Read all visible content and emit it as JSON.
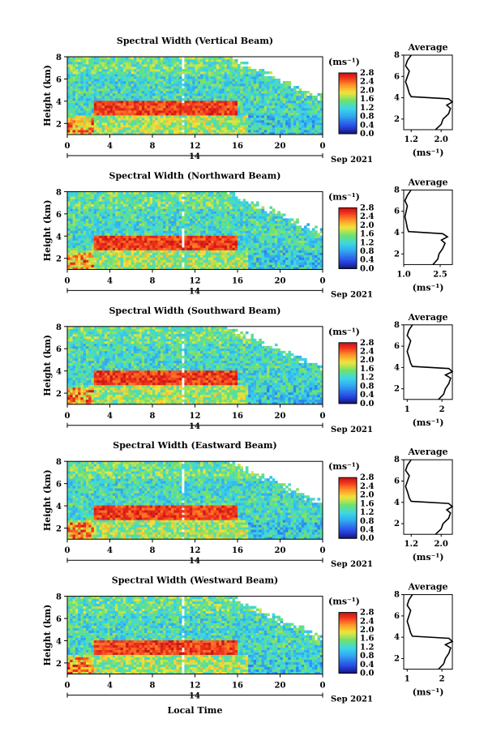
{
  "figure": {
    "x_axis_label": "Local Time",
    "date_label": "Sep 2021",
    "day_label": "14",
    "x_ticks": [
      "0",
      "4",
      "8",
      "12",
      "16",
      "20",
      "0"
    ],
    "y_ticks": [
      "2",
      "4",
      "6",
      "8"
    ],
    "y_label": "Height (km)",
    "colorbar_unit": "(ms⁻¹)",
    "colorbar_ticks": [
      "0.0",
      "0.4",
      "0.8",
      "1.2",
      "1.6",
      "2.0",
      "2.4",
      "2.8"
    ],
    "average_title": "Average",
    "average_unit": "(ms⁻¹)"
  },
  "colors": {
    "blue": "#2244dd",
    "cyan": "#33ccee",
    "green": "#66dd55",
    "yellow": "#ffdd33",
    "orange": "#ff8822",
    "red": "#ee2222",
    "navy": "#101040"
  },
  "chart_data": [
    {
      "type": "heatmap",
      "title": "Spectral Width (Vertical Beam)",
      "x_range_hours": [
        0,
        24
      ],
      "y_range_km": [
        1,
        8
      ],
      "value_range": [
        0.0,
        2.8
      ],
      "features": {
        "high_width_band_km": [
          2.8,
          4.0
        ],
        "high_width_hours": [
          2.5,
          16
        ]
      },
      "average_profile": {
        "xlim": [
          1.0,
          2.3
        ],
        "x_ticks": [
          "1.2",
          "2.0"
        ],
        "y_ticks": [
          "2",
          "4",
          "6",
          "8"
        ],
        "height_km": [
          1.0,
          1.5,
          2.0,
          2.5,
          3.0,
          3.3,
          3.6,
          3.9,
          4.1,
          4.4,
          5.0,
          5.5,
          6.0,
          6.5,
          7.0,
          7.5,
          8.0
        ],
        "value": [
          1.85,
          2.0,
          2.05,
          2.2,
          2.25,
          2.15,
          2.3,
          2.2,
          1.2,
          1.15,
          1.1,
          1.05,
          1.1,
          1.15,
          1.05,
          1.1,
          1.2
        ]
      }
    },
    {
      "type": "heatmap",
      "title": "Spectral Width (Northward Beam)",
      "x_range_hours": [
        0,
        24
      ],
      "y_range_km": [
        1,
        8
      ],
      "value_range": [
        0.0,
        2.8
      ],
      "features": {
        "high_width_band_km": [
          2.8,
          4.0
        ],
        "high_width_hours": [
          2.5,
          16
        ]
      },
      "average_profile": {
        "xlim": [
          1.0,
          3.0
        ],
        "x_ticks": [
          "1.0",
          "2.5"
        ],
        "y_ticks": [
          "2",
          "4",
          "6",
          "8"
        ],
        "height_km": [
          1.0,
          1.5,
          2.0,
          2.5,
          3.0,
          3.3,
          3.6,
          3.9,
          4.1,
          4.4,
          5.0,
          5.5,
          6.0,
          6.5,
          7.0,
          7.5,
          8.0
        ],
        "value": [
          2.2,
          2.4,
          2.45,
          2.6,
          2.7,
          2.55,
          2.8,
          2.6,
          1.2,
          1.15,
          1.1,
          1.05,
          1.1,
          1.15,
          1.05,
          1.15,
          1.3
        ]
      }
    },
    {
      "type": "heatmap",
      "title": "Spectral Width (Southward Beam)",
      "x_range_hours": [
        0,
        24
      ],
      "y_range_km": [
        1,
        8
      ],
      "value_range": [
        0.0,
        2.8
      ],
      "features": {
        "high_width_band_km": [
          2.8,
          4.0
        ],
        "high_width_hours": [
          2.5,
          16
        ]
      },
      "average_profile": {
        "xlim": [
          0.9,
          2.3
        ],
        "x_ticks": [
          "1",
          "2"
        ],
        "y_ticks": [
          "2",
          "4",
          "6",
          "8"
        ],
        "height_km": [
          1.0,
          1.5,
          2.0,
          2.5,
          3.0,
          3.3,
          3.6,
          3.9,
          4.1,
          4.4,
          5.0,
          5.5,
          6.0,
          6.5,
          7.0,
          7.5,
          8.0
        ],
        "value": [
          1.9,
          2.05,
          2.1,
          2.2,
          2.25,
          2.1,
          2.3,
          2.2,
          1.15,
          1.1,
          1.05,
          1.0,
          1.05,
          1.1,
          1.0,
          1.05,
          1.15
        ]
      }
    },
    {
      "type": "heatmap",
      "title": "Spectral Width (Eastward Beam)",
      "x_range_hours": [
        0,
        24
      ],
      "y_range_km": [
        1,
        8
      ],
      "value_range": [
        0.0,
        2.8
      ],
      "features": {
        "high_width_band_km": [
          2.8,
          4.0
        ],
        "high_width_hours": [
          2.5,
          16
        ]
      },
      "average_profile": {
        "xlim": [
          1.0,
          2.3
        ],
        "x_ticks": [
          "1.2",
          "2.0"
        ],
        "y_ticks": [
          "2",
          "4",
          "6",
          "8"
        ],
        "height_km": [
          1.0,
          1.5,
          2.0,
          2.5,
          3.0,
          3.3,
          3.6,
          3.9,
          4.1,
          4.4,
          5.0,
          5.5,
          6.0,
          6.5,
          7.0,
          7.5,
          8.0
        ],
        "value": [
          1.85,
          2.0,
          2.05,
          2.2,
          2.25,
          2.15,
          2.3,
          2.2,
          1.2,
          1.15,
          1.1,
          1.05,
          1.1,
          1.15,
          1.05,
          1.1,
          1.2
        ]
      }
    },
    {
      "type": "heatmap",
      "title": "Spectral Width (Westward Beam)",
      "x_range_hours": [
        0,
        24
      ],
      "y_range_km": [
        1,
        8
      ],
      "value_range": [
        0.0,
        2.8
      ],
      "features": {
        "high_width_band_km": [
          2.8,
          4.0
        ],
        "high_width_hours": [
          2.5,
          16
        ]
      },
      "average_profile": {
        "xlim": [
          0.9,
          2.3
        ],
        "x_ticks": [
          "1",
          "2"
        ],
        "y_ticks": [
          "2",
          "4",
          "6",
          "8"
        ],
        "height_km": [
          1.0,
          1.5,
          2.0,
          2.5,
          3.0,
          3.3,
          3.6,
          3.9,
          4.1,
          4.4,
          5.0,
          5.5,
          6.0,
          6.5,
          7.0,
          7.5,
          8.0
        ],
        "value": [
          1.9,
          2.05,
          2.1,
          2.2,
          2.25,
          2.1,
          2.3,
          2.2,
          1.15,
          1.1,
          1.05,
          1.0,
          1.05,
          1.1,
          1.0,
          1.05,
          1.15
        ]
      }
    }
  ]
}
